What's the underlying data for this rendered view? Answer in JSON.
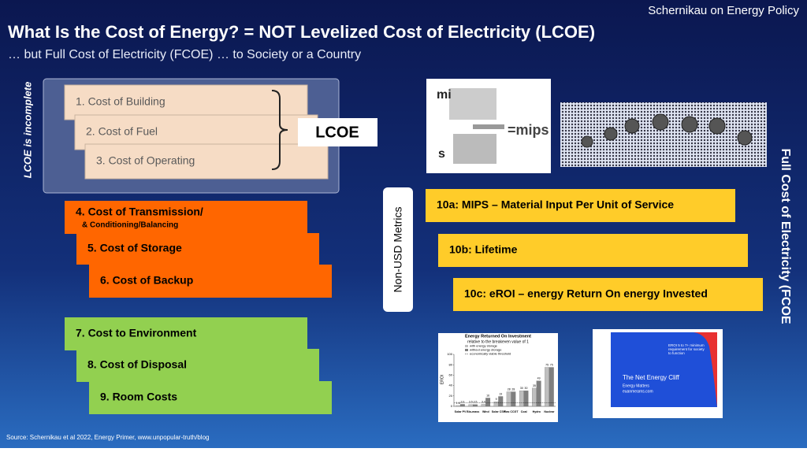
{
  "header": {
    "brand": "Schernikau on Energy Policy",
    "title": "What Is the Cost of Energy? = NOT Levelized Cost of Electricity (LCOE)",
    "subtitle": "… but Full Cost of Electricity (FCOE) … to Society or a Country"
  },
  "lcoe": {
    "side_label": "LCOE is incomplete",
    "label": "LCOE",
    "items": [
      "1. Cost of Building",
      "2. Cost of Fuel",
      "3. Cost of Operating"
    ]
  },
  "system_costs": {
    "color": "#ff6600",
    "items": [
      {
        "text": "4. Cost of Transmission/",
        "note": "& Conditioning/Balancing"
      },
      {
        "text": "5. Cost of Storage"
      },
      {
        "text": "6. Cost of Backup"
      }
    ]
  },
  "external_costs": {
    "color": "#92d050",
    "items": [
      "7. Cost to Environment",
      "8. Cost of Disposal",
      "9. Room Costs"
    ]
  },
  "non_usd": {
    "label": "Non-USD Metrics",
    "color": "#ffcc29",
    "items": [
      "10a: MIPS – Material Input Per Unit of Service",
      "10b: Lifetime",
      "10c: eROI – energy Return On energy Invested"
    ]
  },
  "fcoe_label": "Full Cost of Electricity (FCOE",
  "mips_image": {
    "top": "mi",
    "bottom": "s",
    "result": "=mips"
  },
  "eroi_chart": {
    "type": "bar",
    "title": "Energy Returned On Investment",
    "subtitle": "relative to the breakeven value of 1",
    "y_label": "EROI",
    "categories": [
      "Solar PV",
      "Bio-mass",
      "Wind",
      "Solar CSP",
      "Gas CCGT",
      "Coal",
      "Hydro",
      "Nuclear"
    ],
    "series": [
      {
        "name": "with energy storage",
        "color": "#bfbfbf",
        "values": [
          1.6,
          3.5,
          3.9,
          9,
          28,
          30,
          35,
          75
        ]
      },
      {
        "name": "without energy storage",
        "color": "#7f7f7f",
        "values": [
          3.9,
          3.5,
          16,
          19,
          28,
          30,
          49,
          75
        ]
      }
    ],
    "threshold": {
      "name": "economically viable threshold",
      "value": 7
    },
    "ylim": [
      0,
      100
    ],
    "yticks": [
      0,
      20,
      40,
      60,
      80,
      100
    ]
  },
  "net_energy_cliff": {
    "title": "The Net Energy Cliff",
    "source": "Energy Matters",
    "site": "euanmearns.com",
    "note": "EROI 5 to 7+ minimum requirement for society to function"
  },
  "source": "Source: Schernikau et al 2022, Energy Primer, www.unpopular-truth/blog"
}
